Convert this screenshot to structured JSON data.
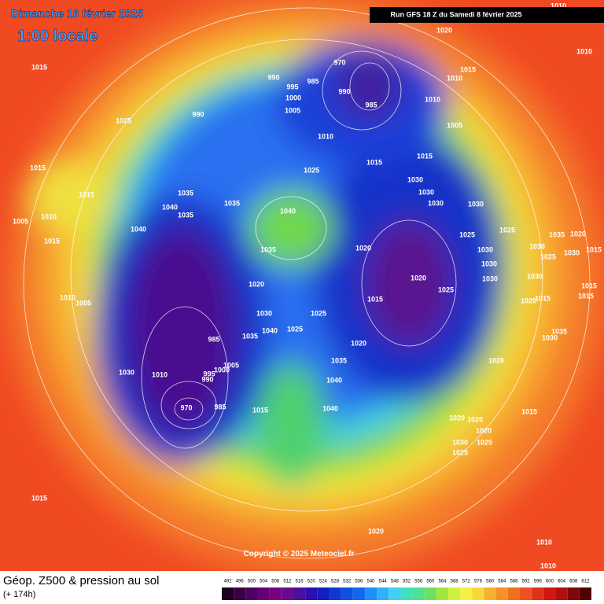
{
  "header": {
    "date": "Dimanche 16 février 2025",
    "time": "1:00 locale",
    "run": "Run GFS 18 Z du Samedi 8 février 2025",
    "copyright": "Copyright © 2025 Meteociel.fr"
  },
  "footer": {
    "title": "Géop. Z500 & pression au sol",
    "subtitle": "(+ 174h)"
  },
  "scale": [
    492,
    496,
    500,
    504,
    508,
    512,
    516,
    520,
    524,
    528,
    532,
    536,
    540,
    544,
    548,
    552,
    556,
    560,
    564,
    568,
    572,
    576,
    580,
    584,
    588,
    592,
    596,
    600,
    604,
    608,
    612
  ],
  "pressure_labels": [
    1015,
    1025,
    1015,
    1015,
    1010,
    1005,
    1015,
    1040,
    1040,
    1035,
    1035,
    1035,
    1040,
    1035,
    1020,
    1030,
    1040,
    1035,
    1025,
    1025,
    1010,
    1005,
    985,
    1000,
    995,
    1005,
    990,
    1010,
    1030,
    970,
    985,
    1015,
    1040,
    1040,
    1035,
    1020,
    1015,
    1020,
    1025,
    1020,
    1025,
    1030,
    1030,
    1030,
    1025,
    1030,
    1025,
    1030,
    1035,
    1020,
    1030,
    1015,
    1015,
    1015,
    1020,
    1015,
    1035,
    1030,
    1020,
    1015,
    1020,
    1020,
    1020,
    1025,
    1030,
    1025,
    1020,
    1015,
    1010,
    1010,
    990,
    995,
    1000,
    1005,
    990,
    1010,
    1025,
    1015,
    1015,
    1030,
    1030,
    1030,
    1030,
    1005,
    1010,
    1010,
    1015,
    1010,
    1010,
    1020,
    985,
    990,
    970,
    985
  ]
}
